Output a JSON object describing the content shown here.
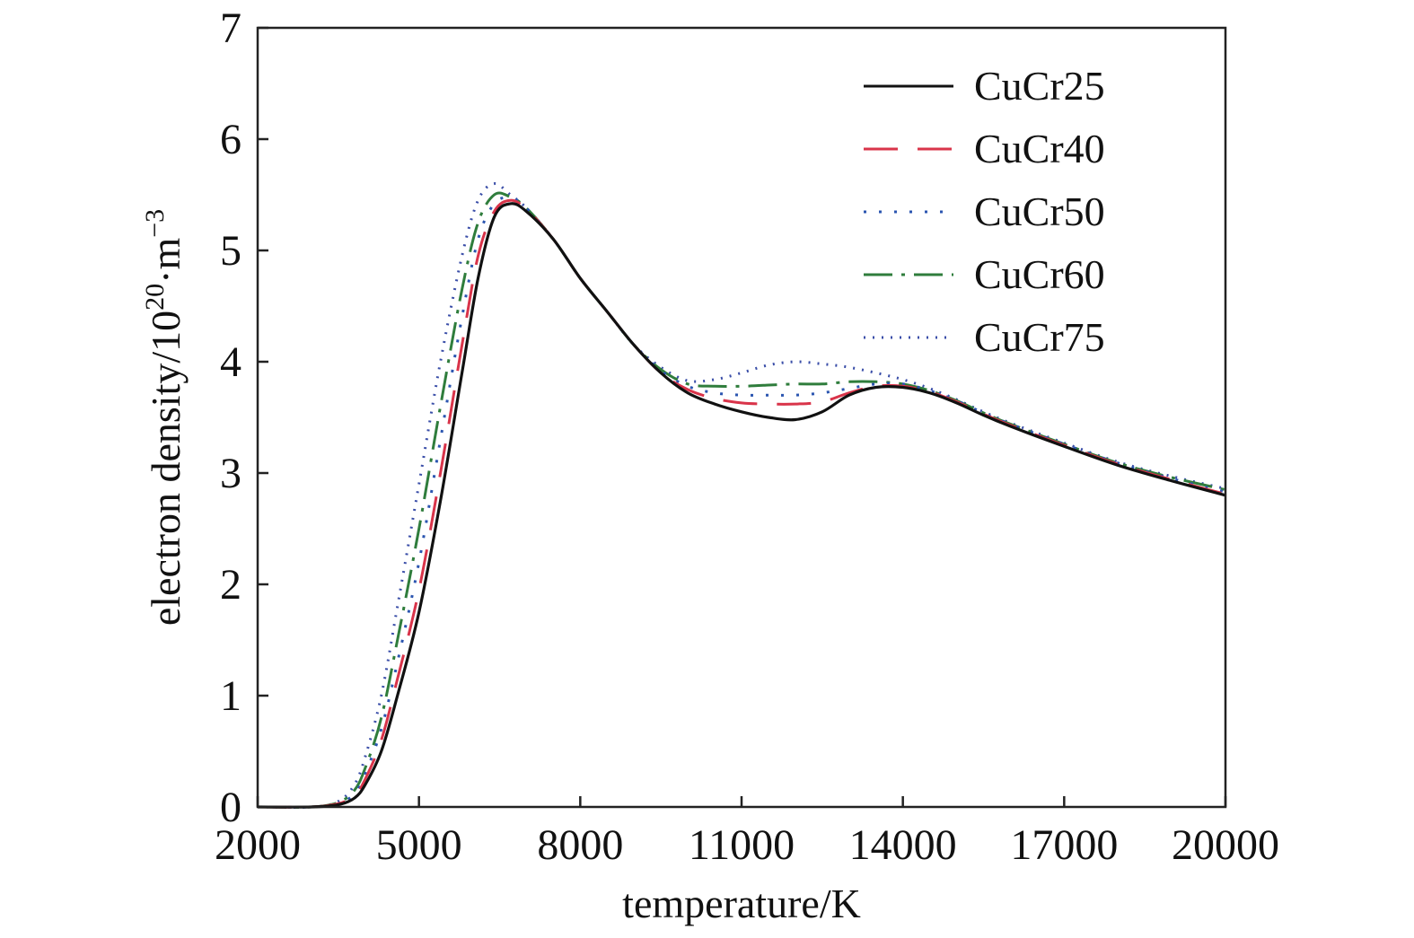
{
  "chart_data": {
    "type": "line",
    "title": "",
    "xlabel": "temperature/K",
    "ylabel": "electron density/10²⁰·m⁻³",
    "ylabel_parts": {
      "main": "electron density/10",
      "exp1": "20",
      "mid": "·m",
      "exp2": "−3"
    },
    "xlim": [
      2000,
      20000
    ],
    "ylim": [
      0,
      7
    ],
    "xticks": [
      2000,
      5000,
      8000,
      11000,
      14000,
      17000,
      20000
    ],
    "yticks": [
      0,
      1,
      2,
      3,
      4,
      5,
      6,
      7
    ],
    "grid": false,
    "legend_position": "top-right",
    "series": [
      {
        "name": "CuCr25",
        "color": "#111111",
        "dash": "solid",
        "x": [
          2000,
          3000,
          3500,
          3800,
          4000,
          4300,
          4600,
          5000,
          5400,
          5800,
          6100,
          6400,
          6700,
          7000,
          7500,
          8000,
          8500,
          9000,
          9500,
          10000,
          10500,
          11000,
          11500,
          12000,
          12500,
          13000,
          13500,
          14000,
          14500,
          15000,
          15500,
          16000,
          17000,
          18000,
          19000,
          20000
        ],
        "y": [
          0,
          0,
          0.02,
          0.08,
          0.2,
          0.5,
          1.0,
          1.75,
          2.75,
          3.9,
          4.75,
          5.3,
          5.42,
          5.35,
          5.1,
          4.75,
          4.45,
          4.15,
          3.9,
          3.72,
          3.62,
          3.55,
          3.5,
          3.48,
          3.55,
          3.7,
          3.77,
          3.77,
          3.72,
          3.63,
          3.52,
          3.42,
          3.24,
          3.07,
          2.93,
          2.8
        ]
      },
      {
        "name": "CuCr40",
        "color": "#d9344a",
        "dash": "38,22",
        "x": [
          2000,
          3000,
          3500,
          3800,
          4000,
          4300,
          4600,
          5000,
          5400,
          5800,
          6100,
          6400,
          6700,
          7000,
          7500,
          8000,
          8500,
          9000,
          9500,
          10000,
          10500,
          11000,
          11500,
          12000,
          12500,
          13000,
          13500,
          14000,
          14500,
          15000,
          15500,
          16000,
          17000,
          18000,
          19000,
          20000
        ],
        "y": [
          0,
          0,
          0.03,
          0.1,
          0.25,
          0.6,
          1.15,
          1.95,
          3.0,
          4.15,
          4.95,
          5.35,
          5.45,
          5.37,
          5.1,
          4.75,
          4.45,
          4.15,
          3.9,
          3.75,
          3.67,
          3.63,
          3.62,
          3.62,
          3.64,
          3.72,
          3.78,
          3.78,
          3.73,
          3.64,
          3.53,
          3.43,
          3.25,
          3.08,
          2.94,
          2.81
        ]
      },
      {
        "name": "CuCr50",
        "color": "#2b55b0",
        "dash": "3,14",
        "x": [
          2000,
          3000,
          3500,
          3800,
          4000,
          4300,
          4600,
          5000,
          5400,
          5800,
          6100,
          6400,
          6700,
          7000,
          7500,
          8000,
          8500,
          9000,
          9500,
          10000,
          10500,
          11000,
          11500,
          12000,
          12500,
          13000,
          13500,
          14000,
          14500,
          15000,
          15500,
          16000,
          17000,
          18000,
          19000,
          20000
        ],
        "y": [
          0,
          0,
          0.03,
          0.12,
          0.3,
          0.7,
          1.3,
          2.2,
          3.3,
          4.4,
          5.1,
          5.42,
          5.47,
          5.38,
          5.1,
          4.75,
          4.45,
          4.15,
          3.92,
          3.78,
          3.72,
          3.7,
          3.7,
          3.7,
          3.72,
          3.76,
          3.8,
          3.8,
          3.74,
          3.65,
          3.54,
          3.44,
          3.26,
          3.09,
          2.95,
          2.83
        ]
      },
      {
        "name": "CuCr60",
        "color": "#2f7d3c",
        "dash": "32,10,4,10",
        "x": [
          2000,
          3000,
          3500,
          3800,
          4000,
          4300,
          4600,
          5000,
          5400,
          5800,
          6100,
          6400,
          6700,
          7000,
          7500,
          8000,
          8500,
          9000,
          9500,
          10000,
          10500,
          11000,
          11500,
          12000,
          12500,
          13000,
          13500,
          14000,
          14500,
          15000,
          15500,
          16000,
          17000,
          18000,
          19000,
          20000
        ],
        "y": [
          0,
          0,
          0.04,
          0.15,
          0.35,
          0.8,
          1.5,
          2.5,
          3.6,
          4.65,
          5.25,
          5.5,
          5.48,
          5.38,
          5.1,
          4.75,
          4.45,
          4.15,
          3.93,
          3.8,
          3.78,
          3.78,
          3.79,
          3.8,
          3.8,
          3.82,
          3.82,
          3.8,
          3.74,
          3.65,
          3.54,
          3.44,
          3.26,
          3.09,
          2.96,
          2.85
        ]
      },
      {
        "name": "CuCr75",
        "color": "#3a4ea8",
        "dash": "2,8",
        "x": [
          2000,
          3000,
          3500,
          3800,
          4000,
          4300,
          4600,
          5000,
          5400,
          5800,
          6100,
          6400,
          6700,
          7000,
          7500,
          8000,
          8500,
          9000,
          9500,
          10000,
          10500,
          11000,
          11500,
          12000,
          12500,
          13000,
          13500,
          14000,
          14500,
          15000,
          15500,
          16000,
          17000,
          18000,
          19000,
          20000
        ],
        "y": [
          0,
          0,
          0.05,
          0.2,
          0.45,
          1.0,
          1.8,
          2.9,
          4.0,
          4.95,
          5.45,
          5.6,
          5.5,
          5.38,
          5.1,
          4.75,
          4.45,
          4.15,
          3.95,
          3.83,
          3.84,
          3.9,
          3.97,
          4.0,
          3.98,
          3.95,
          3.9,
          3.84,
          3.76,
          3.66,
          3.55,
          3.45,
          3.27,
          3.1,
          2.97,
          2.86
        ]
      }
    ]
  }
}
